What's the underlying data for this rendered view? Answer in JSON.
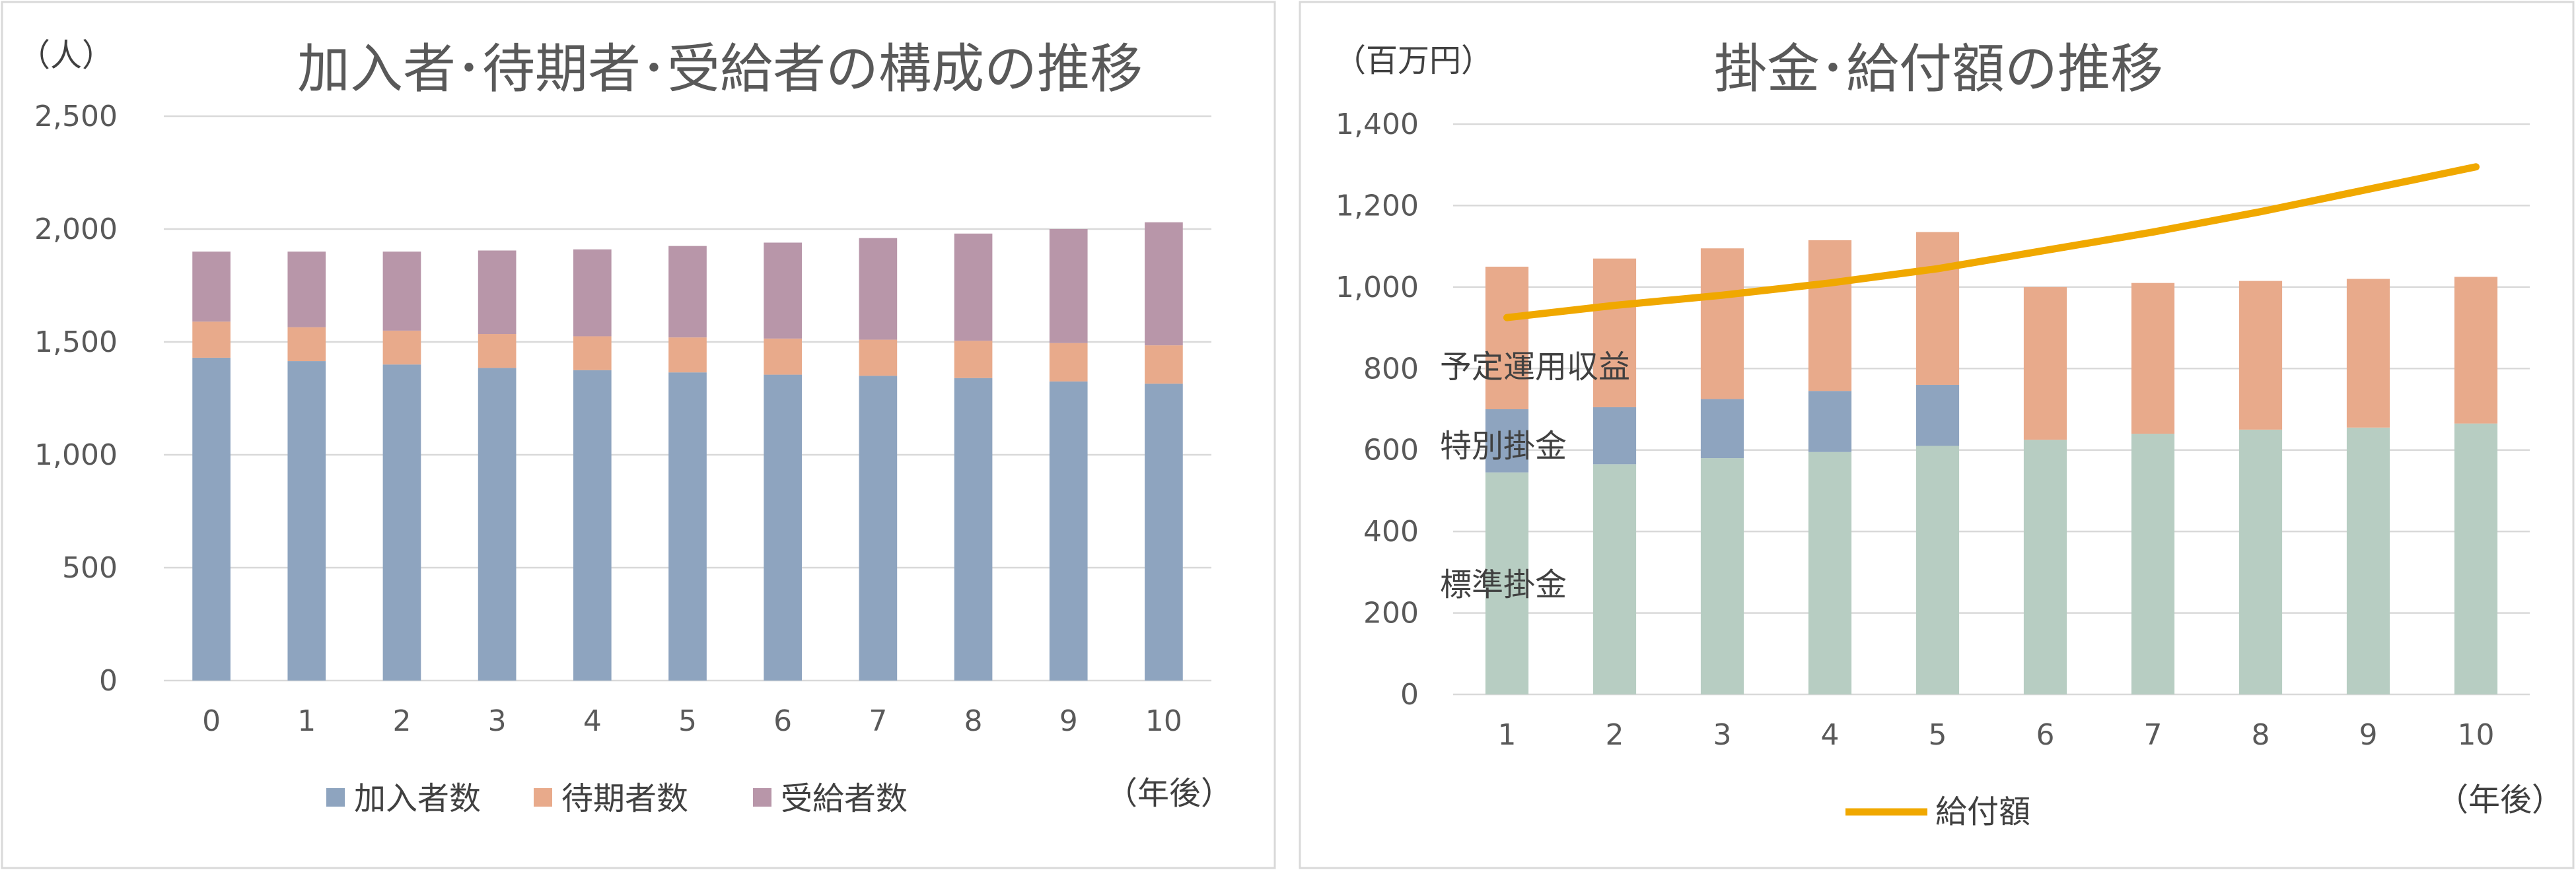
{
  "chart_data": [
    {
      "type": "bar",
      "stacked": true,
      "title": "加入者･待期者･受給者の構成の推移",
      "unit_label": "（人）",
      "xlabel": "（年後）",
      "categories": [
        "0",
        "1",
        "2",
        "3",
        "4",
        "5",
        "6",
        "7",
        "8",
        "9",
        "10"
      ],
      "ylim": [
        0,
        2500
      ],
      "y_ticks": [
        "0",
        "500",
        "1,000",
        "1,500",
        "2,000",
        "2,500"
      ],
      "grid": true,
      "legend_position": "bottom",
      "series": [
        {
          "name": "加入者数",
          "color": "#8ea4bf",
          "values": [
            1430,
            1415,
            1400,
            1385,
            1375,
            1365,
            1355,
            1350,
            1340,
            1325,
            1315
          ]
        },
        {
          "name": "待期者数",
          "color": "#e8aa8b",
          "values": [
            160,
            150,
            150,
            150,
            150,
            155,
            160,
            160,
            165,
            170,
            170
          ]
        },
        {
          "name": "受給者数",
          "color": "#b896a9",
          "values": [
            310,
            335,
            350,
            370,
            385,
            405,
            425,
            450,
            475,
            505,
            545
          ]
        }
      ]
    },
    {
      "type": "bar+line",
      "stacked": true,
      "title": "掛金･給付額の推移",
      "unit_label": "（百万円）",
      "xlabel": "（年後）",
      "categories": [
        "1",
        "2",
        "3",
        "4",
        "5",
        "6",
        "7",
        "8",
        "9",
        "10"
      ],
      "ylim": [
        0,
        1400
      ],
      "y_ticks": [
        "0",
        "200",
        "400",
        "600",
        "800",
        "1,000",
        "1,200",
        "1,400"
      ],
      "grid": true,
      "legend_position": "bottom",
      "series": [
        {
          "name": "標準掛金",
          "color": "#b7cdc2",
          "values": [
            545,
            565,
            580,
            595,
            610,
            625,
            640,
            650,
            655,
            665
          ]
        },
        {
          "name": "特別掛金",
          "color": "#8ea4bf",
          "values": [
            155,
            140,
            145,
            150,
            150,
            0,
            0,
            0,
            0,
            0
          ]
        },
        {
          "name": "予定運用収益",
          "color": "#e8aa8b",
          "values": [
            350,
            365,
            370,
            370,
            375,
            375,
            370,
            365,
            365,
            360
          ]
        }
      ],
      "line": {
        "name": "給付額",
        "color": "#f0a800",
        "values": [
          925,
          955,
          980,
          1010,
          1045,
          1090,
          1135,
          1185,
          1240,
          1295
        ]
      }
    }
  ]
}
